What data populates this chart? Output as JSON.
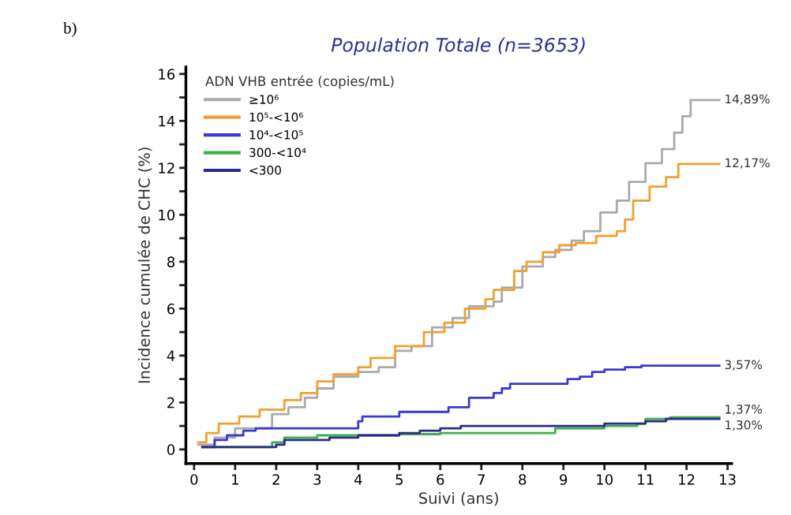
{
  "chart_data": {
    "type": "step",
    "title": "Population Totale (n=3653)",
    "xlabel": "Suivi (ans)",
    "ylabel": "Incidence cumulée de CHC (%)",
    "legend_title": "ADN VHB entrée (copies/mL)",
    "legend": "top left",
    "marker": "none",
    "line_style": "solid",
    "xlim": [
      -0.2,
      13.1
    ],
    "xticks": [
      0,
      1,
      2,
      3,
      4,
      5,
      6,
      7,
      8,
      9,
      10,
      11,
      12,
      13
    ],
    "ylim": [
      -0.6,
      16.3
    ],
    "yticks": [
      0,
      {
        "value": 1,
        "label": null
      },
      2,
      {
        "value": 3,
        "label": null
      },
      4,
      {
        "value": 5,
        "label": null
      },
      6,
      {
        "value": 7,
        "label": null
      },
      8,
      {
        "value": 9,
        "label": null
      },
      10,
      {
        "value": 11,
        "label": null
      },
      12,
      {
        "value": 13,
        "label": null
      },
      14,
      {
        "value": 15,
        "label": null
      },
      16
    ],
    "series": [
      {
        "name": "≥10⁶",
        "color": "#a9a9ae",
        "x": [
          0.1,
          0.5,
          1.0,
          1.9,
          2.3,
          2.7,
          3.0,
          3.4,
          4.0,
          4.5,
          4.9,
          5.3,
          5.8,
          6.3,
          6.7,
          7.3,
          7.5,
          8.0,
          8.5,
          8.8,
          9.2,
          9.5,
          9.9,
          10.3,
          10.6,
          11.0,
          11.4,
          11.7,
          11.9,
          12.1,
          12.8
        ],
        "values": [
          0.2,
          0.5,
          0.9,
          1.5,
          1.8,
          2.2,
          2.6,
          3.1,
          3.3,
          3.5,
          4.2,
          4.4,
          5.2,
          5.6,
          6.1,
          6.3,
          6.9,
          7.8,
          8.2,
          8.5,
          8.9,
          9.3,
          10.1,
          10.6,
          11.4,
          12.2,
          12.8,
          13.5,
          14.2,
          14.89,
          14.89
        ],
        "value_labels": [
          null,
          null,
          null,
          null,
          null,
          null,
          null,
          null,
          null,
          null,
          null,
          null,
          null,
          null,
          null,
          null,
          null,
          null,
          null,
          null,
          null,
          null,
          null,
          null,
          null,
          null,
          null,
          null,
          null,
          null,
          "14,89%"
        ]
      },
      {
        "name": "10⁵-<10⁶",
        "color": "#f0a030",
        "x": [
          0.1,
          0.3,
          0.6,
          1.1,
          1.6,
          2.2,
          2.6,
          3.0,
          3.4,
          4.0,
          4.3,
          4.9,
          5.6,
          6.1,
          6.6,
          7.1,
          7.3,
          7.8,
          8.1,
          8.5,
          8.9,
          9.3,
          9.8,
          10.3,
          10.5,
          10.7,
          11.1,
          11.5,
          11.8,
          12.8
        ],
        "values": [
          0.3,
          0.7,
          1.1,
          1.4,
          1.7,
          2.1,
          2.4,
          2.9,
          3.2,
          3.5,
          3.9,
          4.4,
          5.0,
          5.4,
          6.0,
          6.4,
          6.8,
          7.6,
          8.0,
          8.4,
          8.7,
          8.8,
          9.1,
          9.3,
          9.8,
          10.6,
          11.2,
          11.6,
          12.17,
          12.17
        ],
        "value_labels": [
          null,
          null,
          null,
          null,
          null,
          null,
          null,
          null,
          null,
          null,
          null,
          null,
          null,
          null,
          null,
          null,
          null,
          null,
          null,
          null,
          null,
          null,
          null,
          null,
          null,
          null,
          null,
          null,
          null,
          "12,17%"
        ]
      },
      {
        "name": "10⁴-<10⁵",
        "color": "#3a3ad0",
        "x": [
          0.2,
          0.5,
          0.8,
          1.2,
          1.5,
          4.0,
          4.1,
          5.0,
          6.2,
          6.7,
          7.3,
          7.5,
          7.7,
          9.1,
          9.4,
          9.7,
          10.0,
          10.5,
          10.9,
          12.8
        ],
        "values": [
          0.1,
          0.4,
          0.6,
          0.8,
          0.9,
          1.2,
          1.4,
          1.6,
          1.8,
          2.2,
          2.4,
          2.6,
          2.8,
          3.0,
          3.1,
          3.3,
          3.4,
          3.5,
          3.57,
          3.57
        ],
        "value_labels": [
          null,
          null,
          null,
          null,
          null,
          null,
          null,
          null,
          null,
          null,
          null,
          null,
          null,
          null,
          null,
          null,
          null,
          null,
          null,
          "3,57%"
        ]
      },
      {
        "name": "300-<10⁴",
        "color": "#3cb04a",
        "x": [
          0.2,
          1.9,
          2.2,
          3.0,
          5.0,
          6.0,
          8.8,
          10.0,
          10.8,
          11.0,
          11.6,
          12.8
        ],
        "values": [
          0.1,
          0.3,
          0.5,
          0.6,
          0.65,
          0.7,
          0.9,
          1.0,
          1.1,
          1.3,
          1.37,
          1.37
        ],
        "value_labels": [
          null,
          null,
          null,
          null,
          null,
          null,
          null,
          null,
          null,
          null,
          null,
          "1,37%"
        ]
      },
      {
        "name": "<300",
        "color": "#2a2a8a",
        "x": [
          0.2,
          2.0,
          2.2,
          3.3,
          4.0,
          5.0,
          5.5,
          6.0,
          6.5,
          10.0,
          11.0,
          11.5,
          12.8
        ],
        "values": [
          0.1,
          0.2,
          0.4,
          0.5,
          0.6,
          0.7,
          0.8,
          0.9,
          1.0,
          1.1,
          1.2,
          1.3,
          1.3
        ],
        "value_labels": [
          null,
          null,
          null,
          null,
          null,
          null,
          null,
          null,
          null,
          null,
          null,
          null,
          "1,30%"
        ]
      }
    ],
    "annotations": [
      "b)"
    ]
  }
}
